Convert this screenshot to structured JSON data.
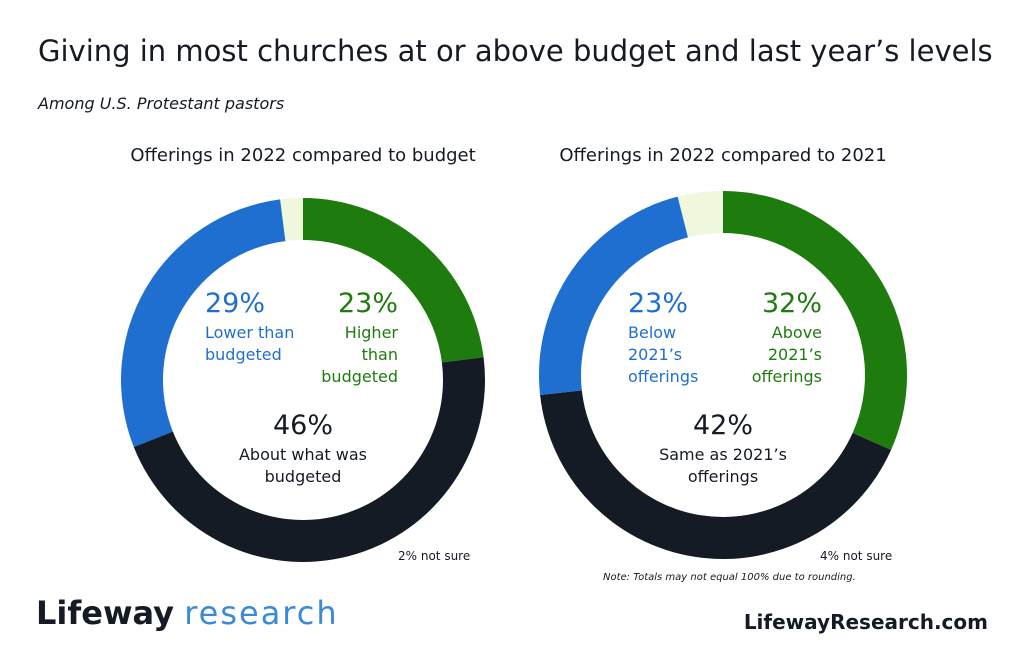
{
  "title": "Giving in most churches at or above budget and last year’s levels",
  "subtitle": "Among U.S. Protestant pastors",
  "note": "Note: Totals may not equal 100% due to rounding.",
  "brand": {
    "name": "Lifeway",
    "suffix": "research"
  },
  "website": "LifewayResearch.com",
  "chart_data": [
    {
      "type": "donut",
      "title": "Offerings in 2022 compared to budget",
      "categories": [
        "Higher than budgeted",
        "About what was budgeted",
        "Lower than budgeted",
        null
      ],
      "values": [
        23,
        46,
        29,
        2
      ],
      "value_labels": [
        "23%",
        "46%",
        "29%",
        "2% not sure"
      ],
      "colors": [
        "#1e7b0e",
        "#151b24",
        "#1f6fd0",
        "#eff7dc"
      ]
    },
    {
      "type": "donut",
      "title": "Offerings in 2022 compared to 2021",
      "categories": [
        "Above 2021’s offerings",
        "Same as 2021’s offerings",
        "Below 2021’s offerings",
        null
      ],
      "values": [
        32,
        42,
        23,
        4
      ],
      "value_labels": [
        "32%",
        "42%",
        "23%",
        "4% not sure"
      ],
      "colors": [
        "#1e7b0e",
        "#151b24",
        "#1f6fd0",
        "#eff7dc"
      ]
    }
  ]
}
